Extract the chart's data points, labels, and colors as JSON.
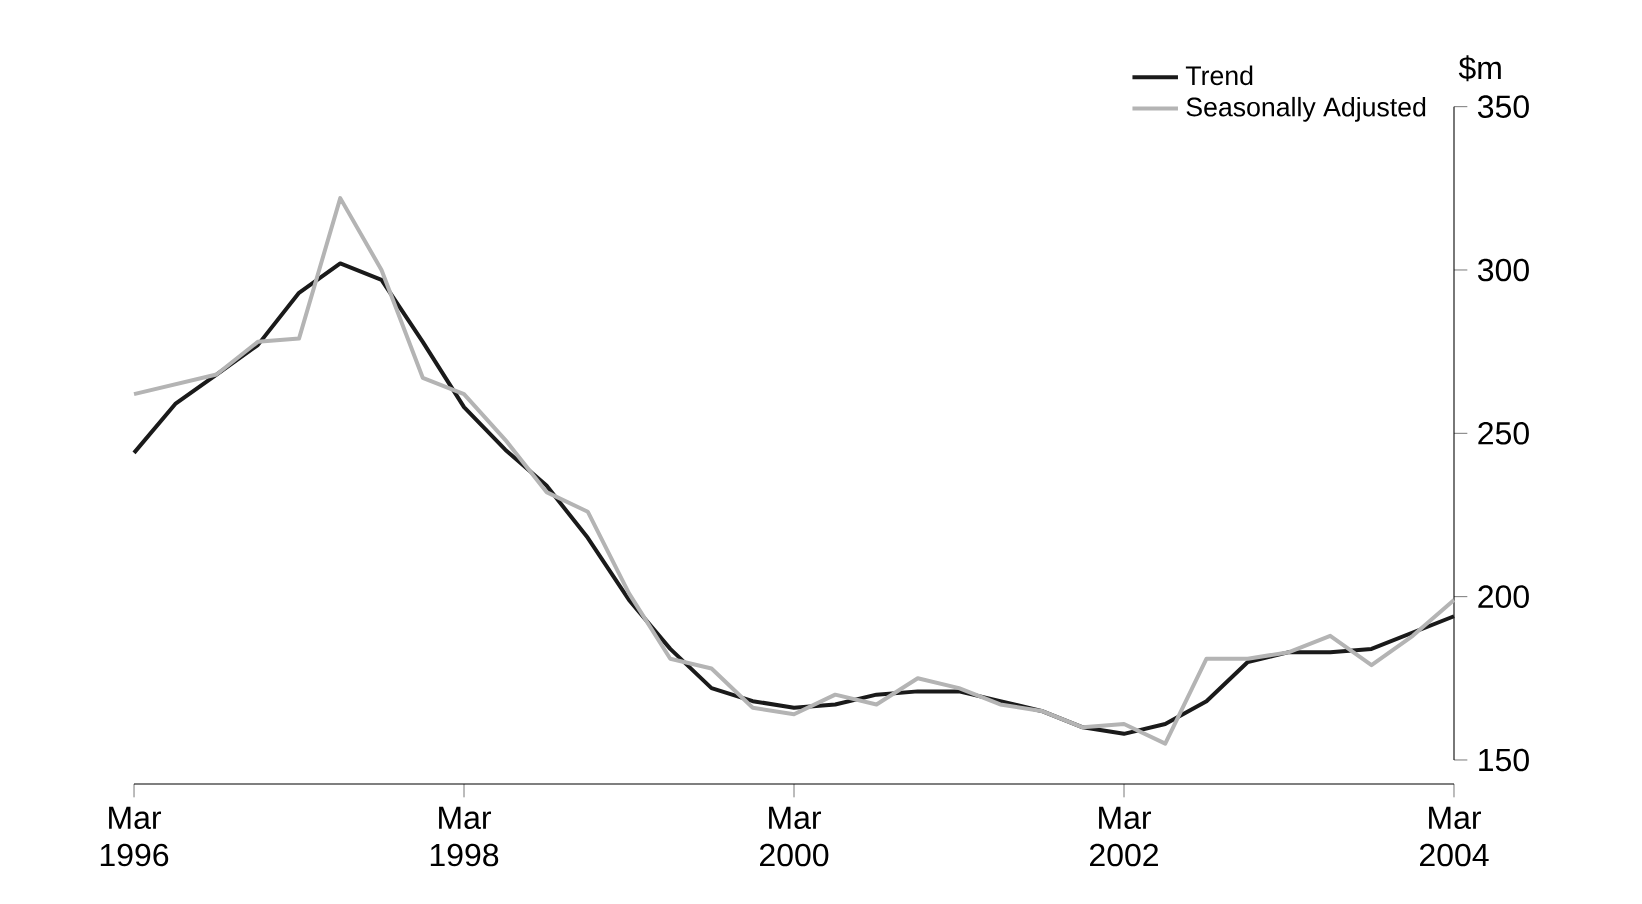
{
  "chart_data": {
    "type": "line",
    "ylabel": "$m",
    "x": [
      "1996-03",
      "1996-06",
      "1996-09",
      "1996-12",
      "1997-03",
      "1997-06",
      "1997-09",
      "1997-12",
      "1998-03",
      "1998-06",
      "1998-09",
      "1998-12",
      "1999-03",
      "1999-06",
      "1999-09",
      "1999-12",
      "2000-03",
      "2000-06",
      "2000-09",
      "2000-12",
      "2001-03",
      "2001-06",
      "2001-09",
      "2001-12",
      "2002-03",
      "2002-06",
      "2002-09",
      "2002-12",
      "2003-03",
      "2003-06",
      "2003-09",
      "2003-12",
      "2004-03"
    ],
    "series": [
      {
        "name": "Trend",
        "color": "#1a1a1a",
        "values": [
          244,
          259,
          268,
          277,
          293,
          302,
          297,
          278,
          258,
          245,
          234,
          218,
          199,
          184,
          172,
          168,
          166,
          167,
          170,
          171,
          171,
          168,
          165,
          160,
          158,
          161,
          168,
          180,
          183,
          183,
          184,
          189,
          194
        ]
      },
      {
        "name": "Seasonally Adjusted",
        "color": "#b4b4b4",
        "values": [
          262,
          265,
          268,
          278,
          279,
          322,
          300,
          267,
          262,
          248,
          232,
          226,
          201,
          181,
          178,
          166,
          164,
          170,
          167,
          175,
          172,
          167,
          165,
          160,
          161,
          155,
          181,
          181,
          183,
          188,
          179,
          188,
          199
        ]
      }
    ],
    "xlim": [
      "1996-03",
      "2004-03"
    ],
    "xticks": [
      {
        "value": "1996-03",
        "label": "Mar 1996"
      },
      {
        "value": "1998-03",
        "label": "Mar 1998"
      },
      {
        "value": "2000-03",
        "label": "Mar 2000"
      },
      {
        "value": "2002-03",
        "label": "Mar 2002"
      },
      {
        "value": "2004-03",
        "label": "Mar 2004"
      }
    ],
    "ylim": [
      150,
      350
    ],
    "yticks": [
      150,
      200,
      250,
      300,
      350
    ],
    "grid": false,
    "legend": "top right",
    "marker": "none",
    "line_style": "solid"
  }
}
